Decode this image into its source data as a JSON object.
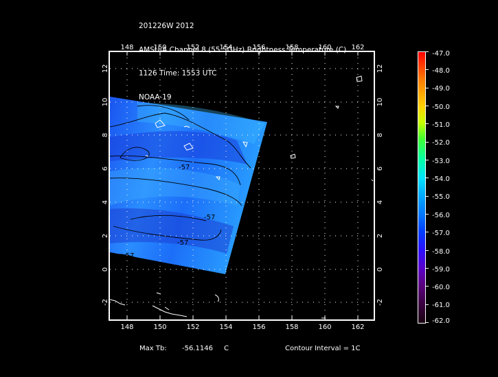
{
  "header": {
    "lines": [
      "201226W 2012",
      "AMSU-A Channel 8 (55.5GHz) Brightness Temperature (C)",
      "1126 Time: 1553 UTC",
      "NOAA-19"
    ]
  },
  "map": {
    "lon_range": [
      147,
      163
    ],
    "lat_range": [
      -3,
      13
    ],
    "lon_ticks": [
      "148",
      "150",
      "152",
      "154",
      "156",
      "158",
      "160",
      "162"
    ],
    "lat_ticks": [
      "12",
      "10",
      "8",
      "6",
      "4",
      "2",
      "0",
      "-2"
    ],
    "contour_labels": [
      "-57",
      "-57",
      "-57",
      "-57"
    ],
    "colors": {
      "background": "#000000",
      "frame": "#ffffff",
      "swath_base": "#1d6cff",
      "swath_light": "#38b8ff",
      "swath_dark": "#1a3cd6",
      "contour": "#000000"
    }
  },
  "footer": {
    "max_label": "Max Tb:",
    "max_value": "-56.1146",
    "max_unit": "C",
    "contour_interval": "Contour Interval = 1C"
  },
  "colorbar": {
    "labels": [
      "-47.0",
      "-48.0",
      "-49.0",
      "-50.0",
      "-51.0",
      "-52.0",
      "-53.0",
      "-54.0",
      "-55.0",
      "-56.0",
      "-57.0",
      "-58.0",
      "-59.0",
      "-60.0",
      "-61.0",
      "-62.0"
    ]
  }
}
